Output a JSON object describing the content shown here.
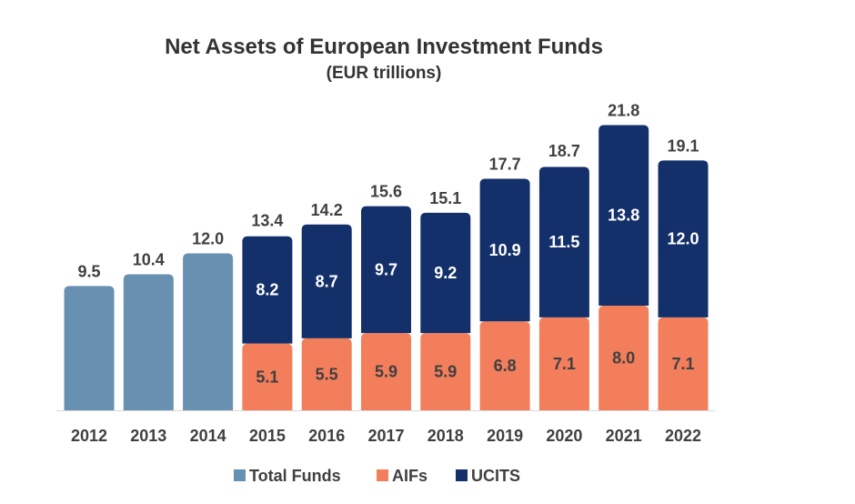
{
  "chart_data": {
    "type": "bar",
    "title": "Net Assets of European Investment Funds",
    "subtitle": "(EUR trillions)",
    "categories": [
      "2012",
      "2013",
      "2014",
      "2015",
      "2016",
      "2017",
      "2018",
      "2019",
      "2020",
      "2021",
      "2022"
    ],
    "series": [
      {
        "name": "Total Funds",
        "values": [
          9.5,
          10.4,
          12.0,
          null,
          null,
          null,
          null,
          null,
          null,
          null,
          null
        ]
      },
      {
        "name": "AIFs",
        "values": [
          null,
          null,
          null,
          5.1,
          5.5,
          5.9,
          5.9,
          6.8,
          7.1,
          8.0,
          7.1
        ]
      },
      {
        "name": "UCITS",
        "values": [
          null,
          null,
          null,
          8.2,
          8.7,
          9.7,
          9.2,
          10.9,
          11.5,
          13.8,
          12.0
        ]
      }
    ],
    "totals": [
      9.5,
      10.4,
      12.0,
      13.4,
      14.2,
      15.6,
      15.1,
      17.7,
      18.7,
      21.8,
      19.1
    ],
    "total_labels": [
      "9.5",
      "10.4",
      "12.0",
      "13.4",
      "14.2",
      "15.6",
      "15.1",
      "17.7",
      "18.7",
      "21.8",
      "19.1"
    ],
    "aif_labels": [
      "",
      "",
      "",
      "5.1",
      "5.5",
      "5.9",
      "5.9",
      "6.8",
      "7.1",
      "8.0",
      "7.1"
    ],
    "ucits_labels": [
      "",
      "",
      "",
      "8.2",
      "8.7",
      "9.7",
      "9.2",
      "10.9",
      "11.5",
      "13.8",
      "12.0"
    ],
    "ylim": [
      0,
      24
    ],
    "legend": [
      "Total Funds",
      "AIFs",
      "UCITS"
    ],
    "legend_position": "bottom",
    "colors": {
      "total": "#6891b1",
      "aif": "#f27e5c",
      "ucits": "#14306a"
    }
  }
}
